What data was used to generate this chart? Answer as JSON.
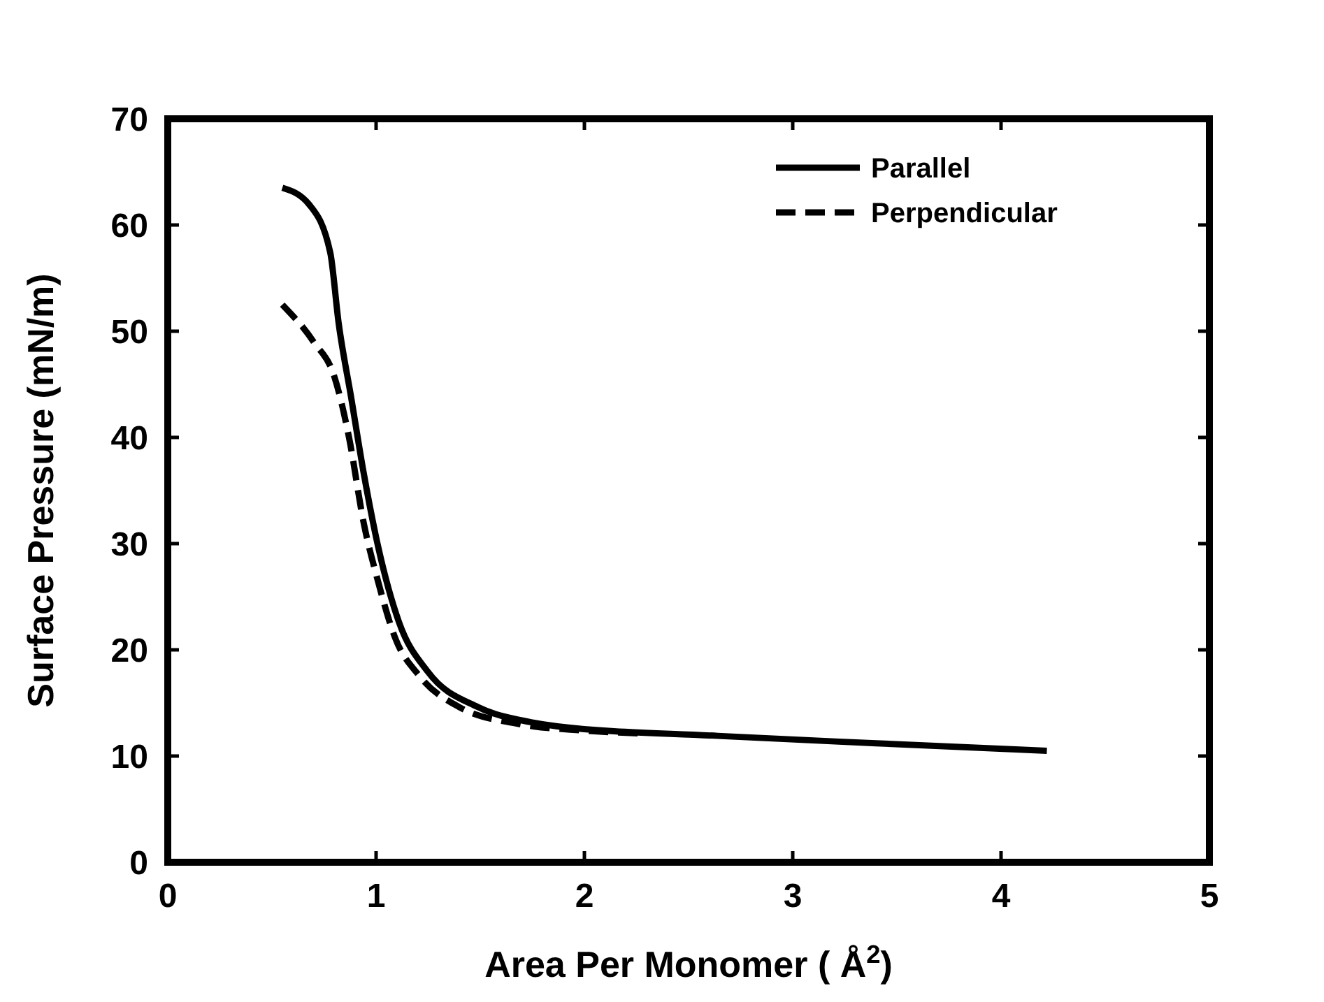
{
  "chart_data": {
    "type": "line",
    "xlabel": "Area Per Monomer ( Å$^{2}$)",
    "ylabel": "Surface Pressure (mN/m)",
    "xlim": [
      0,
      5
    ],
    "xticks": [
      0,
      1,
      2,
      3,
      4,
      5
    ],
    "ylim": [
      0,
      70
    ],
    "yticks": [
      0,
      10,
      20,
      30,
      40,
      50,
      60,
      70
    ],
    "grid": false,
    "legend": "top right",
    "series": [
      {
        "name": "Parallel",
        "color": "#000000",
        "line_style": "solid",
        "x": [
          0.55,
          0.68,
          0.78,
          0.82,
          0.88,
          0.94,
          1.01,
          1.11,
          1.25,
          1.49,
          1.74,
          1.87,
          2.64,
          3.4,
          4.22
        ],
        "values": [
          63.5,
          61.9,
          57.4,
          50.8,
          43.8,
          36.7,
          29.7,
          22.6,
          17.9,
          14.6,
          13.2,
          12.8,
          11.9,
          11.2,
          10.5
        ]
      },
      {
        "name": "Perpendicular",
        "color": "#000000",
        "line_style": "dashed",
        "x": [
          0.55,
          0.7,
          0.8,
          0.87,
          0.94,
          1.01,
          1.09,
          1.21,
          1.4,
          1.69,
          2.0,
          2.3
        ],
        "values": [
          52.5,
          49.0,
          45.7,
          40.0,
          32.0,
          26.4,
          21.2,
          17.5,
          14.6,
          13.0,
          12.4,
          12.1
        ]
      }
    ]
  }
}
